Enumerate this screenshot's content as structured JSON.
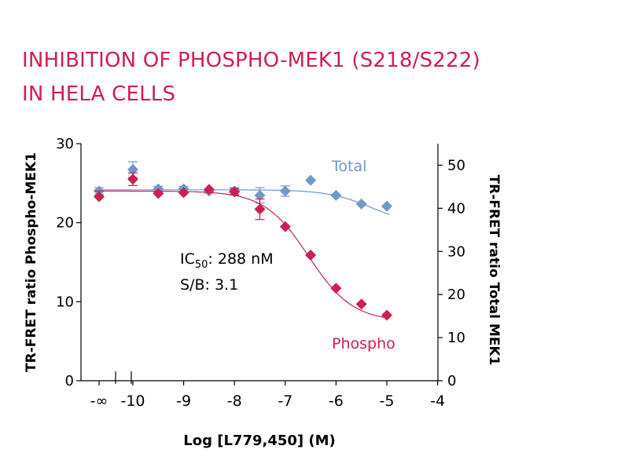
{
  "title": {
    "line1": "INHIBITION OF PHOSPHO-MEK1 (S218/S222)",
    "line2": "IN HELA CELLS"
  },
  "chart_data": {
    "type": "scatter",
    "title": "INHIBITION OF PHOSPHO-MEK1 (S218/S222) IN HELA CELLS",
    "xlabel": "Log [L779,450] (M)",
    "ylabel_left": "TR-FRET ratio Phospho-MEK1",
    "ylabel_right": "TR-FRET ratio Total MEK1",
    "x_ticks": [
      {
        "value": "-inf",
        "label": "-∞"
      },
      {
        "value": -10,
        "label": "-10"
      },
      {
        "value": -9,
        "label": "-9"
      },
      {
        "value": -8,
        "label": "-8"
      },
      {
        "value": -7,
        "label": "-7"
      },
      {
        "value": -6,
        "label": "-6"
      },
      {
        "value": -5,
        "label": "-5"
      },
      {
        "value": -4,
        "label": "-4"
      }
    ],
    "xlim": [
      -10.75,
      -4
    ],
    "ylim_left": [
      0,
      30
    ],
    "ylim_right": [
      0,
      55
    ],
    "y_ticks_left": [
      0,
      10,
      20,
      30
    ],
    "y_ticks_right": [
      0,
      10,
      20,
      30,
      40,
      50
    ],
    "series": [
      {
        "name": "Total",
        "axis": "right",
        "color": "#7098c8",
        "marker": "diamond",
        "points": [
          {
            "x": "-inf",
            "y": 44.0,
            "err": 0.8
          },
          {
            "x": -10.0,
            "y": 49.0,
            "err": 1.8
          },
          {
            "x": -9.5,
            "y": 44.5,
            "err": 0.6
          },
          {
            "x": -9.0,
            "y": 44.5,
            "err": 0.6
          },
          {
            "x": -8.5,
            "y": 44.0,
            "err": 0.5
          },
          {
            "x": -8.0,
            "y": 44.0,
            "err": 0.8
          },
          {
            "x": -7.5,
            "y": 43.0,
            "err": 1.8
          },
          {
            "x": -7.0,
            "y": 44.0,
            "err": 1.2
          },
          {
            "x": -6.5,
            "y": 46.5,
            "err": 0
          },
          {
            "x": -6.0,
            "y": 43.0,
            "err": 0
          },
          {
            "x": -5.5,
            "y": 41.0,
            "err": 0
          },
          {
            "x": -5.0,
            "y": 40.5,
            "err": 0
          }
        ],
        "fit": {
          "top": 44.3,
          "bottom": 36.0,
          "logIC50": -5.3,
          "hill": 1.0
        }
      },
      {
        "name": "Phospho",
        "axis": "left",
        "color": "#cc2150",
        "marker": "diamond",
        "points": [
          {
            "x": "-inf",
            "y": 23.3,
            "err": 0
          },
          {
            "x": -10.0,
            "y": 25.5,
            "err": 0.8
          },
          {
            "x": -9.5,
            "y": 23.7,
            "err": 0
          },
          {
            "x": -9.0,
            "y": 23.8,
            "err": 0
          },
          {
            "x": -8.5,
            "y": 24.2,
            "err": 0
          },
          {
            "x": -8.0,
            "y": 23.9,
            "err": 0.4
          },
          {
            "x": -7.5,
            "y": 21.7,
            "err": 1.3
          },
          {
            "x": -7.0,
            "y": 19.5,
            "err": 0
          },
          {
            "x": -6.5,
            "y": 15.9,
            "err": 0
          },
          {
            "x": -6.0,
            "y": 11.7,
            "err": 0
          },
          {
            "x": -5.5,
            "y": 9.7,
            "err": 0
          },
          {
            "x": -5.0,
            "y": 8.3,
            "err": 0
          }
        ],
        "fit": {
          "top": 24.0,
          "bottom": 7.5,
          "logIC50": -6.54,
          "hill": 1.0
        }
      }
    ],
    "annotations": {
      "ic50_prefix": "IC",
      "ic50_sub": "50",
      "ic50_value": ": 288 nM",
      "sb": "S/B: 3.1"
    },
    "grid": false
  },
  "colors": {
    "title": "#cc2150",
    "total": "#7098c8",
    "phospho": "#cc2150",
    "axis": "#000000"
  }
}
